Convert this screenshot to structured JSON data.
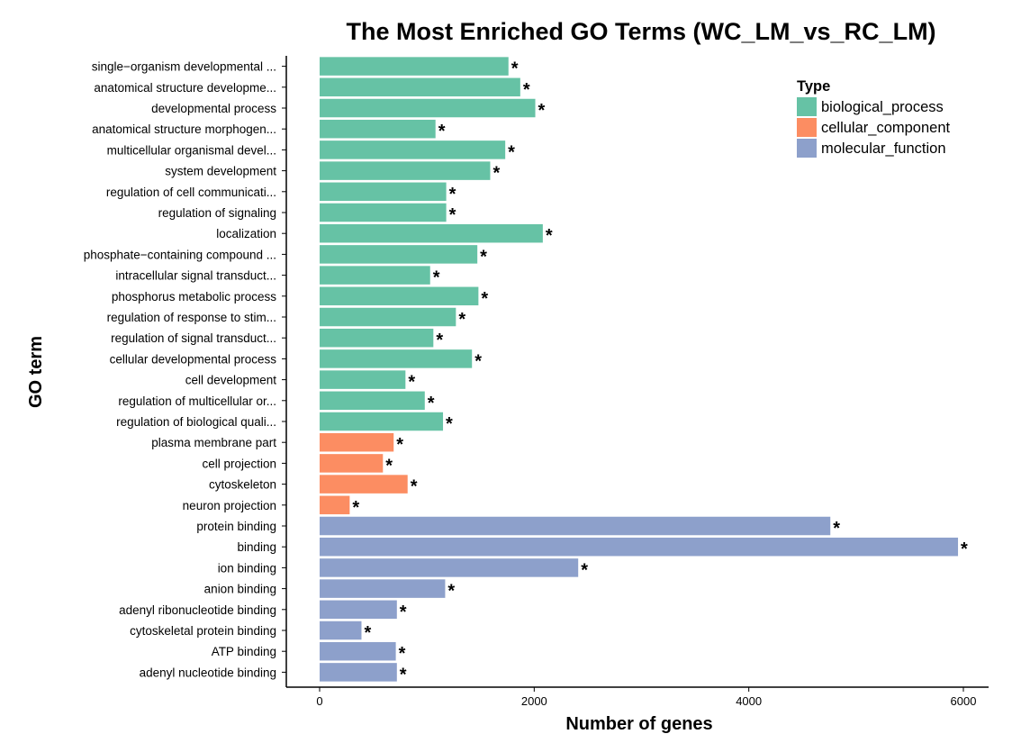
{
  "chart_data": {
    "type": "bar",
    "orientation": "horizontal",
    "title": "The Most Enriched GO Terms (WC_LM_vs_RC_LM)",
    "xlabel": "Number of genes",
    "ylabel": "GO term",
    "xlim": [
      -200,
      6250
    ],
    "xticks": [
      0,
      2000,
      4000,
      6000
    ],
    "grid": false,
    "legend": {
      "title": "Type",
      "position": "top-right",
      "entries": [
        {
          "name": "biological_process",
          "color": "#66c2a5"
        },
        {
          "name": "cellular_component",
          "color": "#fc8d62"
        },
        {
          "name": "molecular_function",
          "color": "#8da0cb"
        }
      ]
    },
    "annotation_marker": "*",
    "terms": [
      {
        "label": "single−organism developmental ...",
        "value": 1760,
        "type": "biological_process"
      },
      {
        "label": "anatomical structure developme...",
        "value": 1870,
        "type": "biological_process"
      },
      {
        "label": "developmental process",
        "value": 2010,
        "type": "biological_process"
      },
      {
        "label": "anatomical structure morphogen...",
        "value": 1080,
        "type": "biological_process"
      },
      {
        "label": "multicellular organismal devel...",
        "value": 1730,
        "type": "biological_process"
      },
      {
        "label": "system development",
        "value": 1590,
        "type": "biological_process"
      },
      {
        "label": "regulation of cell communicati...",
        "value": 1180,
        "type": "biological_process"
      },
      {
        "label": "regulation of signaling",
        "value": 1180,
        "type": "biological_process"
      },
      {
        "label": "localization",
        "value": 2080,
        "type": "biological_process"
      },
      {
        "label": "phosphate−containing compound ...",
        "value": 1470,
        "type": "biological_process"
      },
      {
        "label": "intracellular signal transduct...",
        "value": 1030,
        "type": "biological_process"
      },
      {
        "label": "phosphorus metabolic process",
        "value": 1480,
        "type": "biological_process"
      },
      {
        "label": "regulation of response to stim...",
        "value": 1270,
        "type": "biological_process"
      },
      {
        "label": "regulation of signal transduct...",
        "value": 1060,
        "type": "biological_process"
      },
      {
        "label": "cellular developmental process",
        "value": 1420,
        "type": "biological_process"
      },
      {
        "label": "cell development",
        "value": 800,
        "type": "biological_process"
      },
      {
        "label": "regulation of multicellular or...",
        "value": 980,
        "type": "biological_process"
      },
      {
        "label": "regulation of biological quali...",
        "value": 1150,
        "type": "biological_process"
      },
      {
        "label": "plasma membrane part",
        "value": 690,
        "type": "cellular_component"
      },
      {
        "label": "cell projection",
        "value": 590,
        "type": "cellular_component"
      },
      {
        "label": "cytoskeleton",
        "value": 820,
        "type": "cellular_component"
      },
      {
        "label": "neuron projection",
        "value": 280,
        "type": "cellular_component"
      },
      {
        "label": "protein binding",
        "value": 4760,
        "type": "molecular_function"
      },
      {
        "label": "binding",
        "value": 5950,
        "type": "molecular_function"
      },
      {
        "label": "ion binding",
        "value": 2410,
        "type": "molecular_function"
      },
      {
        "label": "anion binding",
        "value": 1170,
        "type": "molecular_function"
      },
      {
        "label": "adenyl ribonucleotide binding",
        "value": 720,
        "type": "molecular_function"
      },
      {
        "label": "cytoskeletal protein binding",
        "value": 390,
        "type": "molecular_function"
      },
      {
        "label": "ATP binding",
        "value": 710,
        "type": "molecular_function"
      },
      {
        "label": "adenyl nucleotide binding",
        "value": 720,
        "type": "molecular_function"
      }
    ]
  }
}
